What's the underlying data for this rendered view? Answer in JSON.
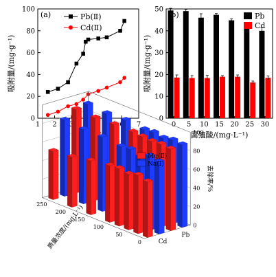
{
  "chart_data": [
    {
      "panel": "(a)",
      "type": "line",
      "xlabel": "平衡pH",
      "ylabel": "吸附量/(mg·g⁻¹)",
      "xlim": [
        1,
        7
      ],
      "ylim": [
        0,
        100
      ],
      "xticks": [
        1,
        2,
        3,
        4,
        5,
        6,
        7
      ],
      "yticks": [
        0,
        20,
        40,
        60,
        80,
        100
      ],
      "legend": "top-left",
      "series": [
        {
          "name": "Pb(Ⅱ)",
          "color": "#000000",
          "marker": "square",
          "x": [
            1.6,
            2.2,
            2.8,
            3.3,
            3.7,
            3.85,
            4.0,
            4.6,
            5.1,
            5.9,
            6.15
          ],
          "y": [
            24,
            27,
            33,
            50,
            59,
            70,
            72,
            73,
            74,
            80,
            89
          ]
        },
        {
          "name": "Cd(Ⅱ)",
          "color": "#ff0000",
          "marker": "circle",
          "x": [
            1.6,
            2.2,
            2.8,
            3.3,
            3.7,
            4.0,
            4.6,
            5.1,
            5.9,
            6.15
          ],
          "y": [
            3,
            6,
            11,
            13,
            17,
            22,
            25,
            28,
            33,
            37
          ]
        }
      ]
    },
    {
      "panel": "(b)",
      "type": "bar",
      "xlabel": "腐殖酸/(mg·L⁻¹)",
      "ylabel": "吸附量/(mg·g⁻¹)",
      "categories": [
        "0",
        "5",
        "10",
        "15",
        "20",
        "25",
        "30"
      ],
      "ylim": [
        0,
        50
      ],
      "yticks": [
        0,
        10,
        20,
        30,
        40,
        50
      ],
      "legend": "top-right",
      "series": [
        {
          "name": "Pb",
          "color": "#000000",
          "values": [
            49.3,
            49.0,
            46.0,
            47.3,
            44.8,
            43.0,
            40.0
          ],
          "errors": [
            1.0,
            0.8,
            1.8,
            0.6,
            0.7,
            0.8,
            1.5
          ]
        },
        {
          "name": "Cd",
          "color": "#ff0000",
          "values": [
            18.6,
            18.4,
            18.4,
            19.0,
            19.0,
            16.4,
            18.5
          ],
          "errors": [
            1.2,
            1.1,
            1.2,
            0.5,
            0.8,
            0.6,
            0.8
          ]
        }
      ]
    },
    {
      "panel": "(c)",
      "type": "bar3d",
      "zlabel": "去除率/%",
      "ylabel": "质量浓度/(mg·L⁻¹)",
      "zticks": [
        0,
        20,
        40,
        60,
        80,
        100
      ],
      "yticks": [
        0,
        50,
        100,
        150,
        200,
        250
      ],
      "xcategories": [
        "Cd",
        "Pb"
      ],
      "legend": "top",
      "series": [
        {
          "name": "Mg(Ⅱ)",
          "color": "#ff1e1e"
        },
        {
          "name": "Na(Ⅰ)",
          "color": "#1e3cff"
        }
      ],
      "concentrations": [
        0,
        25,
        50,
        75,
        100,
        150,
        200,
        250
      ],
      "values": {
        "Mg_Cd": [
          60,
          63,
          60,
          62,
          61,
          58,
          54,
          52
        ],
        "Na_Cd": [
          78,
          80,
          75,
          79,
          78,
          80,
          80,
          82
        ],
        "Mg_Pb": [
          88,
          89,
          88,
          89,
          90,
          90,
          89,
          90
        ],
        "Na_Pb": [
          89,
          90,
          88,
          90,
          89,
          91,
          90,
          92
        ]
      }
    }
  ]
}
